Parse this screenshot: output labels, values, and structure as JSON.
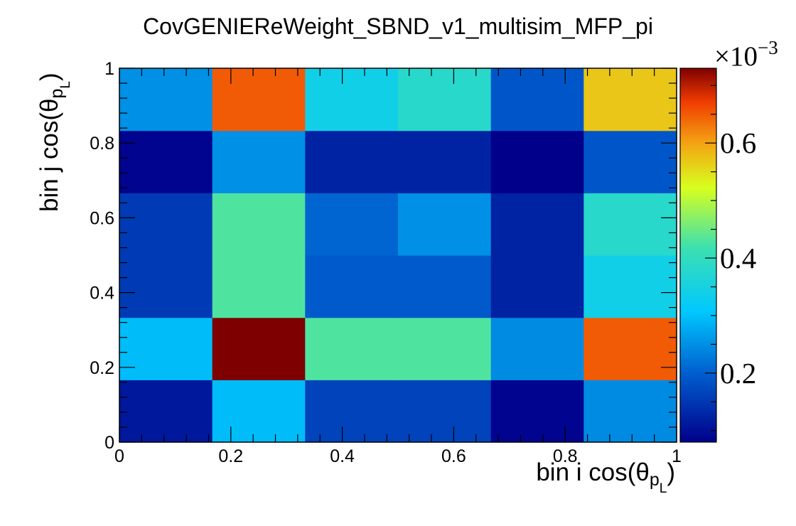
{
  "chart_data": {
    "type": "heatmap",
    "title": "CovGENIEReWeight_SBND_v1_multisim_MFP_pi",
    "xlabel": {
      "prefix": "bin i cos(θ",
      "subscript": "p",
      "subsubscript": "L",
      "suffix": ")"
    },
    "ylabel": {
      "prefix": "bin j cos(θ",
      "subscript": "p",
      "subsubscript": "L",
      "suffix": ")"
    },
    "xlim": [
      0,
      1
    ],
    "ylim": [
      0,
      1
    ],
    "x_tick_labels": [
      "0",
      "0.2",
      "0.4",
      "0.6",
      "0.8",
      "1"
    ],
    "y_tick_labels": [
      "0",
      "0.2",
      "0.4",
      "0.6",
      "0.8",
      "1"
    ],
    "x_edges": [
      0,
      0.1667,
      0.3333,
      0.5,
      0.6667,
      0.8333,
      1
    ],
    "y_edges": [
      0,
      0.1667,
      0.3333,
      0.5,
      0.6667,
      0.8333,
      1
    ],
    "z_values_bottom_to_top": [
      [
        0.11,
        0.295,
        0.165,
        0.165,
        0.085,
        0.245
      ],
      [
        0.295,
        0.73,
        0.43,
        0.43,
        0.245,
        0.65
      ],
      [
        0.155,
        0.43,
        0.195,
        0.195,
        0.125,
        0.34
      ],
      [
        0.155,
        0.43,
        0.205,
        0.25,
        0.125,
        0.38
      ],
      [
        0.085,
        0.25,
        0.125,
        0.125,
        0.07,
        0.19
      ],
      [
        0.25,
        0.65,
        0.34,
        0.38,
        0.19,
        0.57
      ]
    ],
    "z_range": [
      0.08,
      0.73
    ],
    "colorbar": {
      "multiplier_label": "×10",
      "exponent": "−3",
      "tick_labels": [
        "0.2",
        "0.4",
        "0.6"
      ],
      "tick_values": [
        0.2,
        0.4,
        0.6
      ]
    },
    "palette": "rainbow",
    "grid": false
  }
}
